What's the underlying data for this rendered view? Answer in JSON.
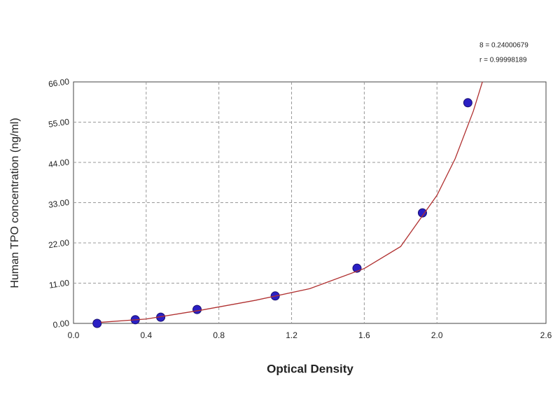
{
  "chart_data": {
    "type": "scatter",
    "x_label": "Optical Density",
    "y_label": "Human TPO concentration (ng/ml)",
    "annotations": [
      "8 = 0.24000679",
      "r = 0.99998189"
    ],
    "xlim": [
      0,
      2.6
    ],
    "ylim": [
      0,
      66
    ],
    "xticks": [
      {
        "value": 0,
        "label": "0.0"
      },
      {
        "value": 0.4,
        "label": "0.4"
      },
      {
        "value": 0.8,
        "label": "0.8"
      },
      {
        "value": 1.2,
        "label": "1.2"
      },
      {
        "value": 1.6,
        "label": "1.6"
      },
      {
        "value": 2.0,
        "label": "2.0"
      },
      {
        "value": 2.6,
        "label": "2.6"
      }
    ],
    "yticks": [
      {
        "value": 0,
        "label": "0.00"
      },
      {
        "value": 11,
        "label": "11.00"
      },
      {
        "value": 22,
        "label": "22.00"
      },
      {
        "value": 33,
        "label": "33.00"
      },
      {
        "value": 44,
        "label": "44.00"
      },
      {
        "value": 55,
        "label": "55.00"
      },
      {
        "value": 66,
        "label": "66.00"
      }
    ],
    "grid": true,
    "series": [
      {
        "color": "#2a1fc4",
        "x": [
          0.13,
          0.34,
          0.48,
          0.68,
          1.11,
          1.56,
          1.92,
          2.17
        ],
        "values": [
          0,
          1,
          1.7,
          3.8,
          7.5,
          15.1,
          30.2,
          60.3
        ]
      },
      {
        "color": "#b03030",
        "line": true,
        "x": [
          0.15,
          0.4,
          0.7,
          1.0,
          1.3,
          1.6,
          1.8,
          2.0,
          2.1,
          2.2,
          2.25
        ],
        "values": [
          0.3,
          1.2,
          3.6,
          6.3,
          9.5,
          15,
          21,
          35,
          45,
          58,
          66
        ]
      }
    ]
  }
}
